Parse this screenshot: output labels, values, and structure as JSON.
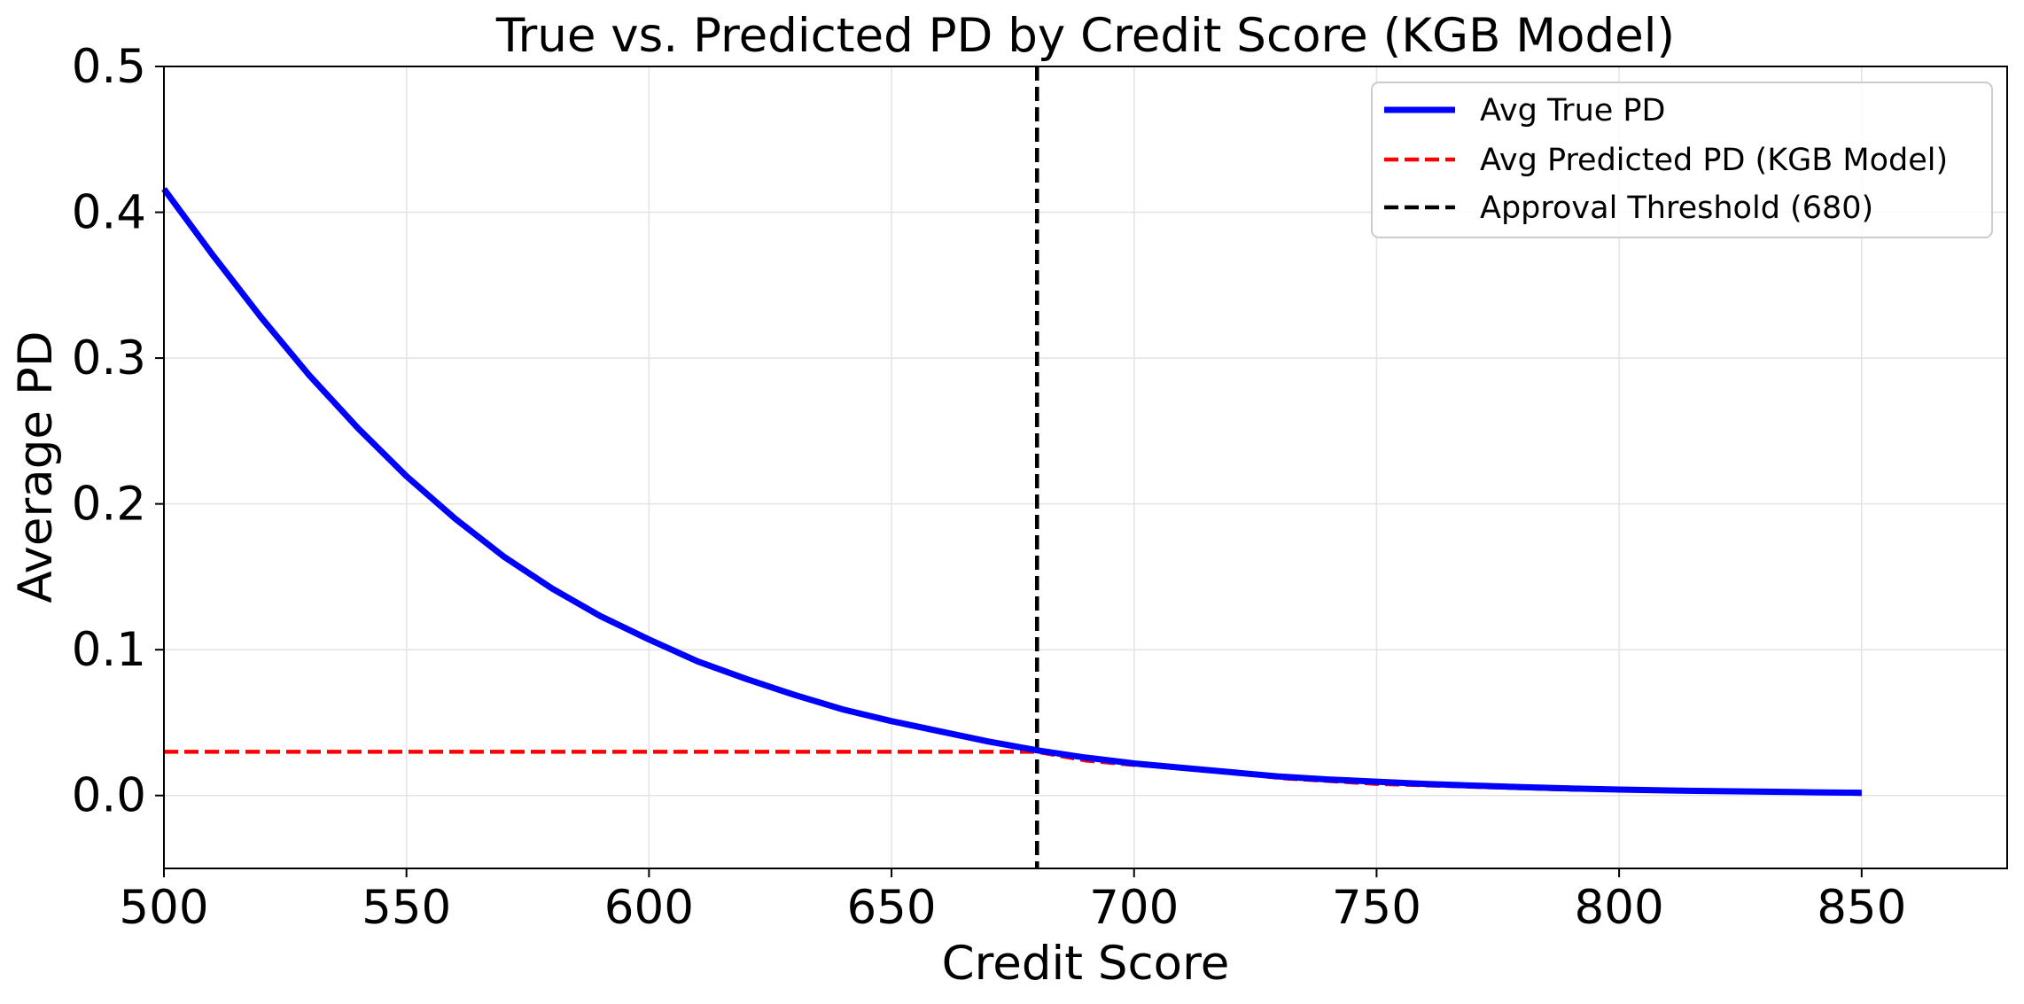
{
  "chart_data": {
    "type": "line",
    "title": "True vs. Predicted PD by Credit Score (KGB Model)",
    "xlabel": "Credit Score",
    "ylabel": "Average PD",
    "xlim": [
      500,
      880
    ],
    "ylim": [
      -0.05,
      0.5
    ],
    "xticks": [
      500,
      550,
      600,
      650,
      700,
      750,
      800,
      850
    ],
    "xtick_labels": [
      "500",
      "550",
      "600",
      "650",
      "700",
      "750",
      "800",
      "850"
    ],
    "yticks": [
      0.0,
      0.1,
      0.2,
      0.3,
      0.4,
      0.5
    ],
    "ytick_labels": [
      "0.0",
      "0.1",
      "0.2",
      "0.3",
      "0.4",
      "0.5"
    ],
    "grid": true,
    "legend_position": "top-right",
    "legend": [
      "Avg True PD",
      "Avg Predicted PD (KGB Model)",
      "Approval Threshold (680)"
    ],
    "x": [
      500,
      510,
      520,
      530,
      540,
      550,
      560,
      570,
      580,
      590,
      600,
      610,
      620,
      630,
      640,
      650,
      660,
      670,
      680,
      690,
      700,
      710,
      720,
      730,
      740,
      750,
      760,
      770,
      780,
      790,
      800,
      810,
      820,
      830,
      840,
      850
    ],
    "series": [
      {
        "name": "Avg True PD",
        "color": "#0000ff",
        "style": "solid",
        "values": [
          0.416,
          0.371,
          0.328,
          0.288,
          0.252,
          0.219,
          0.19,
          0.164,
          0.142,
          0.123,
          0.107,
          0.092,
          0.08,
          0.069,
          0.059,
          0.051,
          0.044,
          0.037,
          0.031,
          0.026,
          0.022,
          0.019,
          0.016,
          0.013,
          0.011,
          0.0095,
          0.008,
          0.0068,
          0.0057,
          0.0048,
          0.0041,
          0.0035,
          0.003,
          0.0026,
          0.0022,
          0.0019
        ]
      },
      {
        "name": "Avg Predicted PD (KGB Model)",
        "color": "#ff0000",
        "style": "dashed",
        "values": [
          0.03,
          0.03,
          0.03,
          0.03,
          0.03,
          0.03,
          0.03,
          0.03,
          0.03,
          0.03,
          0.03,
          0.03,
          0.03,
          0.03,
          0.03,
          0.03,
          0.03,
          0.03,
          0.03,
          0.024,
          0.021,
          0.019,
          0.016,
          0.012,
          0.01,
          0.008,
          0.007,
          0.006,
          0.005,
          0.004,
          0.004,
          0.003,
          0.003,
          0.002,
          0.002,
          0.001
        ]
      }
    ],
    "threshold": {
      "name": "Approval Threshold (680)",
      "x": 680,
      "color": "#000000",
      "style": "dashed"
    }
  }
}
